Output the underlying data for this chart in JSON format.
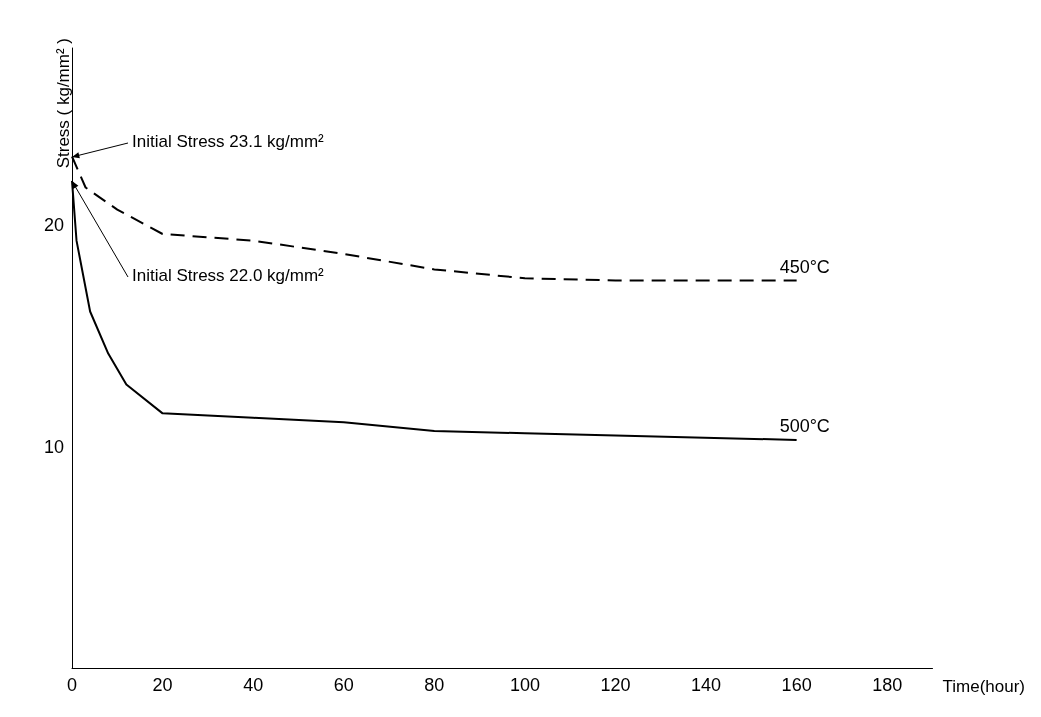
{
  "chart_data": {
    "type": "line",
    "xlabel": "Time(hour)",
    "ylabel": "Stress ( kg/mm² )",
    "xlim": [
      0,
      190
    ],
    "ylim": [
      0,
      28
    ],
    "xticks": [
      0,
      20,
      40,
      60,
      80,
      100,
      120,
      140,
      160,
      180
    ],
    "yticks": [
      10,
      20
    ],
    "series": [
      {
        "name": "450°C",
        "color": "#000000",
        "line_style": "dashed",
        "x": [
          0,
          3,
          10,
          20,
          40,
          60,
          80,
          100,
          120,
          160
        ],
        "values": [
          23.1,
          21.7,
          20.7,
          19.6,
          19.3,
          18.7,
          18.0,
          17.6,
          17.5,
          17.5
        ]
      },
      {
        "name": "500°C",
        "color": "#000000",
        "line_style": "solid",
        "x": [
          0,
          1,
          4,
          8,
          12,
          20,
          40,
          60,
          80,
          100,
          120,
          160
        ],
        "values": [
          22.0,
          19.3,
          16.1,
          14.2,
          12.8,
          11.5,
          11.3,
          11.1,
          10.7,
          10.6,
          10.5,
          10.3
        ]
      }
    ],
    "annotations": [
      {
        "text": "Initial Stress 23.1 kg/mm²",
        "x": 0,
        "y": 23.1
      },
      {
        "text": "Initial Stress 22.0 kg/mm²",
        "x": 0,
        "y": 22.0
      }
    ],
    "grid": false,
    "legend": false,
    "marker": "none"
  }
}
